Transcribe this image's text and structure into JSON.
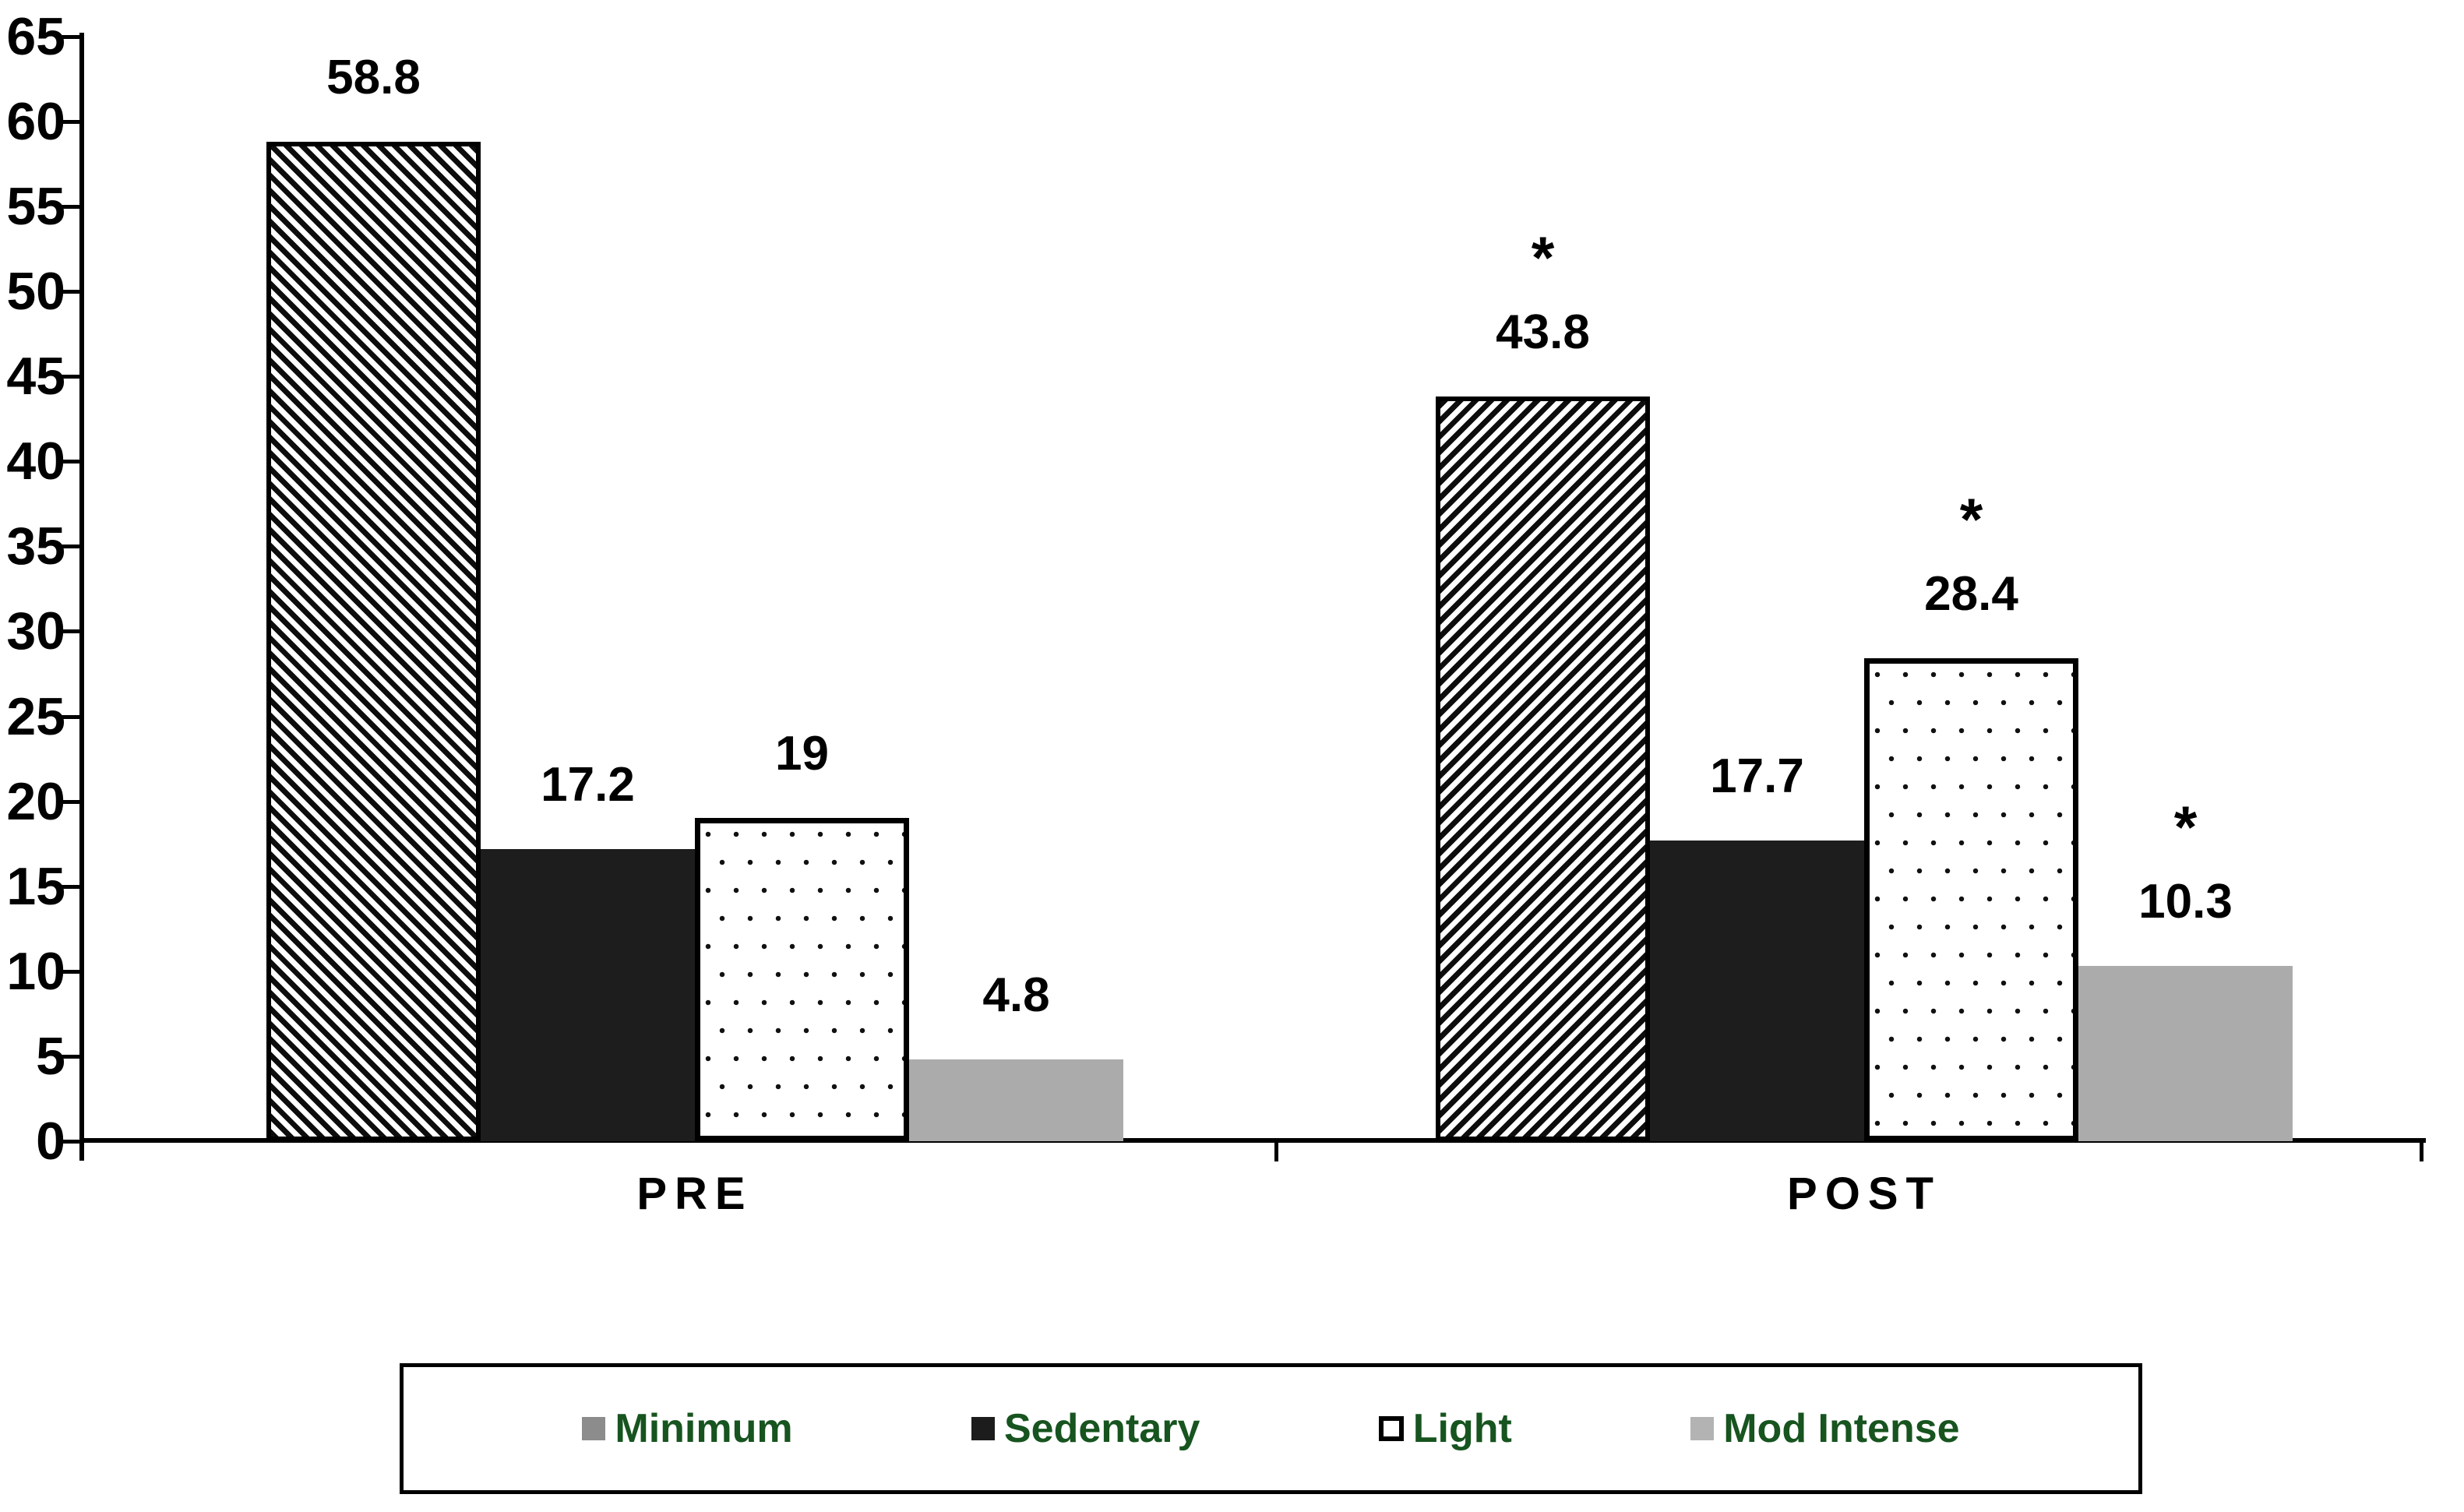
{
  "chart_data": {
    "type": "bar",
    "title": "",
    "categories": [
      "PRE",
      "POST"
    ],
    "series": [
      {
        "name": "Minimum",
        "pattern": "diagonal-hatch",
        "values": [
          58.8,
          43.8
        ],
        "labels": [
          "58.8",
          "43.8"
        ],
        "significant": [
          false,
          true
        ]
      },
      {
        "name": "Sedentary",
        "pattern": "solid-dark",
        "values": [
          17.2,
          17.7
        ],
        "labels": [
          "17.2",
          "17.7"
        ],
        "significant": [
          false,
          false
        ]
      },
      {
        "name": "Light",
        "pattern": "dotted",
        "values": [
          19.0,
          28.4
        ],
        "labels": [
          "19",
          "28.4"
        ],
        "significant": [
          false,
          true
        ]
      },
      {
        "name": "Mod Intense",
        "pattern": "solid-gray",
        "values": [
          4.8,
          10.3
        ],
        "labels": [
          "4.8",
          "10.3"
        ],
        "significant": [
          false,
          true
        ]
      }
    ],
    "significance_marker": "*",
    "y_axis": {
      "min": 0,
      "max": 65,
      "step": 5,
      "tick_labels": [
        "0",
        "5",
        "10",
        "15",
        "20",
        "25",
        "30",
        "35",
        "40",
        "45",
        "50",
        "55",
        "60",
        "65"
      ]
    },
    "x_axis": {
      "labels": [
        "PRE",
        "POST"
      ]
    },
    "grid": false,
    "legend": {
      "position": "bottom",
      "entries": [
        {
          "label": "Minimum",
          "swatch": "gray"
        },
        {
          "label": "Sedentary",
          "swatch": "black"
        },
        {
          "label": "Light",
          "swatch": "white-outlined"
        },
        {
          "label": "Mod Intense",
          "swatch": "light-gray"
        }
      ],
      "text_color": "#17541f"
    },
    "colors": {
      "bar_dark": "#1d1d1d",
      "bar_gray": "#ababab",
      "hatch_ink": "#0d0d0d",
      "axis": "#000000",
      "legend_swatch_gray": "#8c8c8c",
      "legend_swatch_light_gray": "#b3b3b3",
      "legend_text_green": "#17541f"
    }
  }
}
